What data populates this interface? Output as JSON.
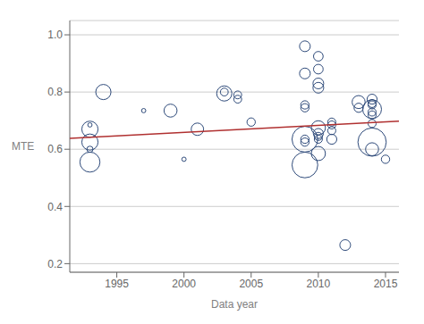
{
  "chart_data": {
    "type": "scatter",
    "xlabel": "Data year",
    "ylabel": "MTE",
    "xlim": [
      1991.5,
      2016
    ],
    "ylim": [
      0.17,
      1.05
    ],
    "xticks": [
      1995,
      2000,
      2005,
      2010,
      2015
    ],
    "yticks": [
      0.2,
      0.4,
      0.6,
      0.8,
      {
        "value": 1.0,
        "label": "1.0"
      }
    ],
    "grid": true,
    "series": [
      {
        "type": "scatter",
        "color": "#2e4a7a",
        "x": [
          1993,
          1993,
          1993,
          1993,
          1993,
          1994,
          1997,
          1999,
          2000,
          2001,
          2003,
          2003,
          2004,
          2004,
          2005,
          2009,
          2009,
          2009,
          2009,
          2009,
          2009,
          2009,
          2009,
          2010,
          2010,
          2010,
          2010,
          2010,
          2010,
          2010,
          2010,
          2010,
          2011,
          2011,
          2011,
          2011,
          2012,
          2013,
          2013,
          2014,
          2014,
          2014,
          2014,
          2014,
          2014,
          2014,
          2014,
          2014,
          2015
        ],
        "y": [
          0.6,
          0.685,
          0.67,
          0.625,
          0.555,
          0.8,
          0.735,
          0.735,
          0.565,
          0.67,
          0.795,
          0.8,
          0.79,
          0.775,
          0.695,
          0.96,
          0.865,
          0.755,
          0.745,
          0.635,
          0.625,
          0.635,
          0.545,
          0.925,
          0.88,
          0.83,
          0.815,
          0.675,
          0.655,
          0.645,
          0.635,
          0.585,
          0.695,
          0.685,
          0.665,
          0.635,
          0.265,
          0.765,
          0.745,
          0.775,
          0.76,
          0.755,
          0.74,
          0.73,
          0.72,
          0.69,
          0.625,
          0.6,
          0.565
        ],
        "sizes": [
          25,
          12,
          170,
          170,
          260,
          150,
          12,
          110,
          12,
          100,
          150,
          40,
          40,
          40,
          45,
          75,
          75,
          45,
          45,
          45,
          45,
          430,
          430,
          60,
          60,
          75,
          75,
          130,
          65,
          42,
          42,
          130,
          42,
          42,
          42,
          65,
          75,
          110,
          55,
          65,
          42,
          42,
          230,
          42,
          42,
          42,
          520,
          110,
          45
        ]
      },
      {
        "type": "line",
        "color": "#b03030",
        "x": [
          1991.5,
          2016
        ],
        "y": [
          0.638,
          0.698
        ]
      }
    ]
  }
}
